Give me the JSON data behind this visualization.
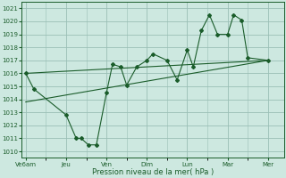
{
  "xlabel": "Pression niveau de la mer( hPa )",
  "bg_color": "#cde8e0",
  "grid_color": "#9abfb5",
  "line_color": "#1a5c2a",
  "ylim": [
    1009.5,
    1021.5
  ],
  "x_ticks_labels": [
    "Ve6am",
    "Jeu",
    "Ven",
    "Dim",
    "Lun",
    "Mar",
    "Mer"
  ],
  "x_ticks_pos": [
    0,
    2,
    4,
    6,
    8,
    10,
    12
  ],
  "xlim": [
    -0.2,
    12.8
  ],
  "series1_x": [
    0,
    0.4,
    2.0,
    2.5,
    2.75,
    3.1,
    3.5,
    4.0,
    4.3,
    4.7,
    5.0,
    5.5,
    6.0,
    6.3,
    7.0,
    7.5,
    8.0,
    8.3,
    8.7,
    9.1,
    9.5,
    10.0,
    10.3,
    10.7,
    11.0,
    12.0
  ],
  "series1_y": [
    1016.0,
    1014.8,
    1012.8,
    1011.0,
    1011.0,
    1010.5,
    1010.5,
    1014.5,
    1016.7,
    1016.5,
    1015.1,
    1016.5,
    1017.0,
    1017.5,
    1017.0,
    1015.5,
    1017.8,
    1016.5,
    1019.3,
    1020.5,
    1019.0,
    1019.0,
    1020.5,
    1020.1,
    1017.2,
    1017.0
  ],
  "trend1_x": [
    0,
    12
  ],
  "trend1_y": [
    1016.0,
    1017.0
  ],
  "trend2_x": [
    0,
    12
  ],
  "trend2_y": [
    1013.8,
    1017.0
  ]
}
